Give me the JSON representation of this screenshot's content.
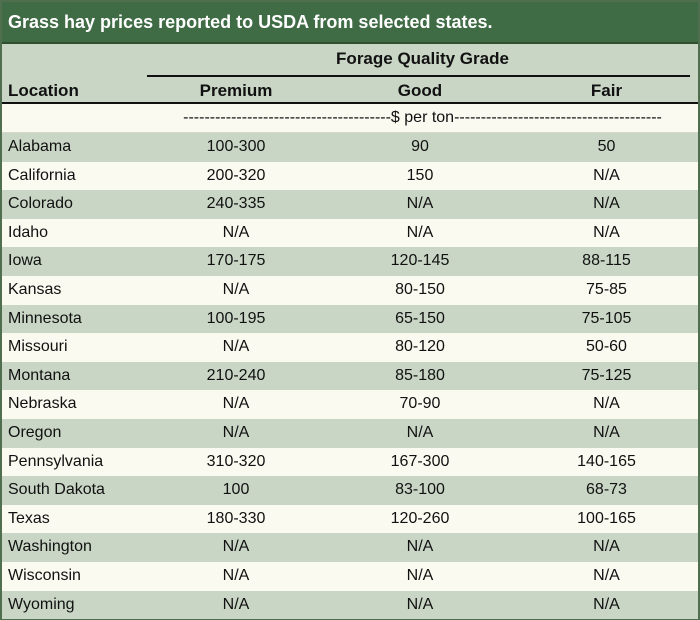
{
  "title": "Grass hay prices reported to USDA from selected states.",
  "header": {
    "group_label": "Forage Quality Grade",
    "location_label": "Location",
    "columns": [
      "Premium",
      "Good",
      "Fair"
    ],
    "units": "---------------------------------------$ per ton---------------------------------------"
  },
  "rows": [
    {
      "location": "Alabama",
      "premium": "100-300",
      "good": "90",
      "fair": "50"
    },
    {
      "location": "California",
      "premium": "200-320",
      "good": "150",
      "fair": "N/A"
    },
    {
      "location": "Colorado",
      "premium": "240-335",
      "good": "N/A",
      "fair": "N/A"
    },
    {
      "location": "Idaho",
      "premium": "N/A",
      "good": "N/A",
      "fair": "N/A"
    },
    {
      "location": "Iowa",
      "premium": "170-175",
      "good": "120-145",
      "fair": "88-115"
    },
    {
      "location": "Kansas",
      "premium": "N/A",
      "good": "80-150",
      "fair": "75-85"
    },
    {
      "location": "Minnesota",
      "premium": "100-195",
      "good": "65-150",
      "fair": "75-105"
    },
    {
      "location": "Missouri",
      "premium": "N/A",
      "good": "80-120",
      "fair": "50-60"
    },
    {
      "location": "Montana",
      "premium": "210-240",
      "good": "85-180",
      "fair": "75-125"
    },
    {
      "location": "Nebraska",
      "premium": "N/A",
      "good": "70-90",
      "fair": "N/A"
    },
    {
      "location": "Oregon",
      "premium": "N/A",
      "good": "N/A",
      "fair": "N/A"
    },
    {
      "location": "Pennsylvania",
      "premium": "310-320",
      "good": "167-300",
      "fair": "140-165"
    },
    {
      "location": "South Dakota",
      "premium": "100",
      "good": "83-100",
      "fair": "68-73"
    },
    {
      "location": "Texas",
      "premium": "180-330",
      "good": "120-260",
      "fair": "100-165"
    },
    {
      "location": "Washington",
      "premium": "N/A",
      "good": "N/A",
      "fair": "N/A"
    },
    {
      "location": "Wisconsin",
      "premium": "N/A",
      "good": "N/A",
      "fair": "N/A"
    },
    {
      "location": "Wyoming",
      "premium": "N/A",
      "good": "N/A",
      "fair": "N/A"
    }
  ],
  "colors": {
    "title_bg": "#3f6b45",
    "band": "#c9d6c5",
    "plain": "#fbfaf0"
  }
}
